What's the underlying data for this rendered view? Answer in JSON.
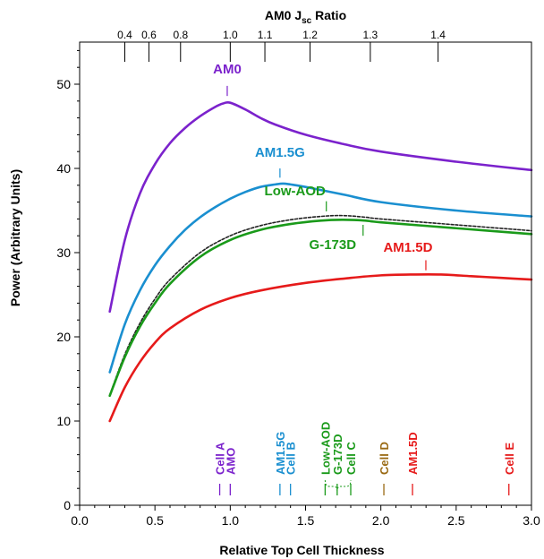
{
  "chart_data": {
    "type": "line",
    "xlabel": "Relative Top Cell Thickness",
    "ylabel": "Power (Arbitrary Units)",
    "top_axis": {
      "title_main": "AM0 J",
      "title_sub": "sc",
      "title_tail": " Ratio",
      "ticks": [
        {
          "label": "0.4",
          "x": 0.3
        },
        {
          "label": "0.6",
          "x": 0.46
        },
        {
          "label": "0.8",
          "x": 0.67
        },
        {
          "label": "1.0",
          "x": 1.0
        },
        {
          "label": "1.1",
          "x": 1.23
        },
        {
          "label": "1.2",
          "x": 1.53
        },
        {
          "label": "1.3",
          "x": 1.93
        },
        {
          "label": "1.4",
          "x": 2.38
        }
      ]
    },
    "xlim": [
      0.0,
      3.0
    ],
    "ylim": [
      0,
      55
    ],
    "x_ticks": [
      "0.0",
      "0.5",
      "1.0",
      "1.5",
      "2.0",
      "2.5",
      "3.0"
    ],
    "y_ticks": [
      "0",
      "10",
      "20",
      "30",
      "40",
      "50"
    ],
    "series": [
      {
        "name": "AM0",
        "color": "#7b22cc",
        "dashed": false,
        "x": [
          0.2,
          0.3,
          0.4,
          0.5,
          0.6,
          0.7,
          0.8,
          0.9,
          0.95,
          1.0,
          1.1,
          1.2,
          1.3,
          1.5,
          1.75,
          2.0,
          2.5,
          3.0
        ],
        "y": [
          23.0,
          31.5,
          37.0,
          40.5,
          43.0,
          44.8,
          46.2,
          47.3,
          47.7,
          47.8,
          47.0,
          46.0,
          45.2,
          44.0,
          42.9,
          42.0,
          40.8,
          39.8
        ]
      },
      {
        "name": "AM1.5G",
        "color": "#1a8fd0",
        "dashed": false,
        "x": [
          0.2,
          0.3,
          0.4,
          0.5,
          0.6,
          0.7,
          0.8,
          0.9,
          1.0,
          1.1,
          1.2,
          1.3,
          1.35,
          1.4,
          1.5,
          1.75,
          2.0,
          2.5,
          3.0
        ],
        "y": [
          15.8,
          21.5,
          25.5,
          28.5,
          30.8,
          32.7,
          34.2,
          35.4,
          36.4,
          37.2,
          37.8,
          38.1,
          38.2,
          38.1,
          37.8,
          36.9,
          36.0,
          35.0,
          34.3
        ]
      },
      {
        "name": "Low-AOD",
        "color": "#222222",
        "dashed": true,
        "x": [
          0.2,
          0.3,
          0.4,
          0.5,
          0.6,
          0.8,
          1.0,
          1.2,
          1.4,
          1.6,
          1.75,
          1.9,
          2.0,
          2.5,
          3.0
        ],
        "y": [
          13.1,
          17.9,
          21.6,
          24.5,
          26.8,
          30.0,
          32.0,
          33.2,
          33.9,
          34.3,
          34.4,
          34.2,
          34.0,
          33.3,
          32.6
        ]
      },
      {
        "name": "G-173D",
        "color": "#1a9a1a",
        "dashed": false,
        "x": [
          0.2,
          0.3,
          0.4,
          0.5,
          0.6,
          0.8,
          1.0,
          1.2,
          1.4,
          1.6,
          1.75,
          1.9,
          2.0,
          2.5,
          3.0
        ],
        "y": [
          13.0,
          17.6,
          21.2,
          24.0,
          26.3,
          29.5,
          31.5,
          32.7,
          33.4,
          33.8,
          33.9,
          33.8,
          33.6,
          32.9,
          32.2
        ]
      },
      {
        "name": "AM1.5D",
        "color": "#e61a1a",
        "dashed": false,
        "x": [
          0.2,
          0.3,
          0.4,
          0.5,
          0.6,
          0.8,
          1.0,
          1.2,
          1.5,
          1.8,
          2.0,
          2.2,
          2.4,
          2.6,
          2.8,
          3.0
        ],
        "y": [
          10.0,
          14.0,
          17.0,
          19.3,
          21.0,
          23.2,
          24.6,
          25.5,
          26.4,
          27.0,
          27.3,
          27.4,
          27.4,
          27.2,
          27.0,
          26.8
        ]
      }
    ],
    "curve_labels": [
      {
        "text": "AM0",
        "color": "#7b22cc",
        "x": 0.98,
        "y": 51.3,
        "tick_y": [
          48.6,
          49.8
        ]
      },
      {
        "text": "AM1.5G",
        "color": "#1a8fd0",
        "x": 1.33,
        "y": 41.4,
        "tick_y": [
          38.9,
          40.0
        ]
      },
      {
        "text": "Low-AOD",
        "color": "#1a9a1a",
        "x": 1.43,
        "y": 36.8,
        "tick_y": [
          34.9,
          36.1
        ]
      },
      {
        "text": "G-173D",
        "color": "#1a9a1a",
        "x": 1.68,
        "y": 30.4,
        "tick_y": [
          32.0,
          33.3
        ]
      },
      {
        "text": "AM1.5D",
        "color": "#e61a1a",
        "x": 2.18,
        "y": 30.1,
        "tick_y": [
          27.9,
          29.1
        ]
      }
    ],
    "cell_markers": [
      {
        "text": "Cell A",
        "color": "#7b22cc",
        "x": 0.93
      },
      {
        "text": "AMO",
        "color": "#7b22cc",
        "x": 1.0
      },
      {
        "text": "AM1.5G",
        "color": "#1a8fd0",
        "x": 1.33
      },
      {
        "text": "Cell B",
        "color": "#1a8fd0",
        "x": 1.4
      },
      {
        "text": "Low-AOD",
        "color": "#1a9a1a",
        "x": 1.63
      },
      {
        "text": "G-173D",
        "color": "#1a9a1a",
        "x": 1.71
      },
      {
        "text": "Cell C",
        "color": "#1a9a1a",
        "x": 1.8
      },
      {
        "text": "Cell D",
        "color": "#9a6a14",
        "x": 2.02
      },
      {
        "text": "AM1.5D",
        "color": "#e61a1a",
        "x": 2.21
      },
      {
        "text": "Cell E",
        "color": "#e61a1a",
        "x": 2.85
      }
    ]
  }
}
